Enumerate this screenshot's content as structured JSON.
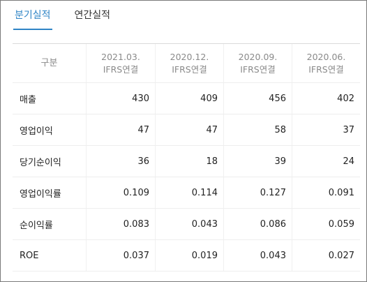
{
  "tabs": [
    {
      "label": "분기실적",
      "active": true
    },
    {
      "label": "연간실적",
      "active": false
    }
  ],
  "table": {
    "header_label": "구분",
    "columns": [
      {
        "period": "2021.03.",
        "basis": "IFRS연결"
      },
      {
        "period": "2020.12.",
        "basis": "IFRS연결"
      },
      {
        "period": "2020.09.",
        "basis": "IFRS연결"
      },
      {
        "period": "2020.06.",
        "basis": "IFRS연결"
      }
    ],
    "rows": [
      {
        "label": "매출",
        "values": [
          "430",
          "409",
          "456",
          "402"
        ]
      },
      {
        "label": "영업이익",
        "values": [
          "47",
          "47",
          "58",
          "37"
        ]
      },
      {
        "label": "당기순이익",
        "values": [
          "36",
          "18",
          "39",
          "24"
        ]
      },
      {
        "label": "영업이익률",
        "values": [
          "0.109",
          "0.114",
          "0.127",
          "0.091"
        ]
      },
      {
        "label": "순이익률",
        "values": [
          "0.083",
          "0.043",
          "0.086",
          "0.059"
        ]
      },
      {
        "label": "ROE",
        "values": [
          "0.037",
          "0.019",
          "0.043",
          "0.027"
        ]
      }
    ]
  },
  "colors": {
    "accent": "#2e84c6",
    "header_text": "#8a8a8a",
    "border": "#7a7a7a"
  }
}
